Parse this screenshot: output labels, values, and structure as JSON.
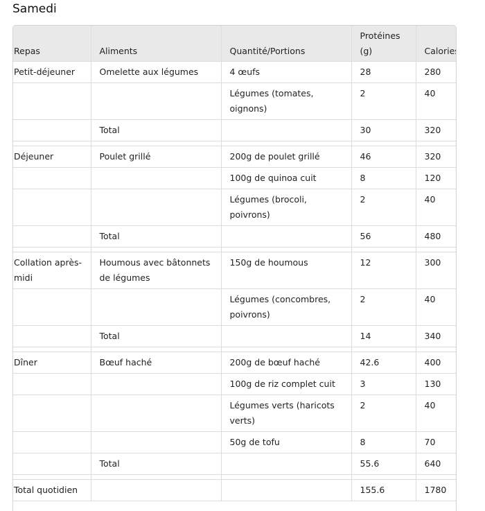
{
  "title": "Samedi",
  "table": {
    "header": [
      "Repas",
      "Aliments",
      "Quantité/Portions",
      "Protéines (g)",
      "Calories"
    ],
    "groups": [
      {
        "rows": [
          [
            "Petit-déjeuner",
            "Omelette aux légumes",
            "4 œufs",
            28,
            280
          ],
          [
            null,
            null,
            "Légumes (tomates, oignons)",
            2,
            40
          ]
        ],
        "total": [
          null,
          "Total",
          null,
          30,
          320
        ]
      },
      {
        "rows": [
          [
            "Déjeuner",
            "Poulet grillé",
            "200g de poulet grillé",
            46,
            320
          ],
          [
            null,
            null,
            "100g de quinoa cuit",
            8,
            120
          ],
          [
            null,
            null,
            "Légumes (brocoli, poivrons)",
            2,
            40
          ]
        ],
        "total": [
          null,
          "Total",
          null,
          56,
          480
        ]
      },
      {
        "rows": [
          [
            "Collation après-midi",
            "Houmous avec bâtonnets de légumes",
            "150g de houmous",
            12,
            300
          ],
          [
            null,
            null,
            "Légumes (concombres, poivrons)",
            2,
            40
          ]
        ],
        "total": [
          null,
          "Total",
          null,
          14,
          340
        ]
      },
      {
        "rows": [
          [
            "Dîner",
            "Bœuf haché",
            "200g de bœuf haché",
            42.6,
            400
          ],
          [
            null,
            null,
            "100g de riz complet cuit",
            3,
            130
          ],
          [
            null,
            null,
            "Légumes verts (haricots verts)",
            2,
            40
          ],
          [
            null,
            null,
            "50g de tofu",
            8,
            70
          ]
        ],
        "total": [
          null,
          "Total",
          null,
          55.6,
          640
        ]
      }
    ],
    "footer": [
      "Total quotidien",
      null,
      null,
      155.6,
      1780
    ]
  }
}
